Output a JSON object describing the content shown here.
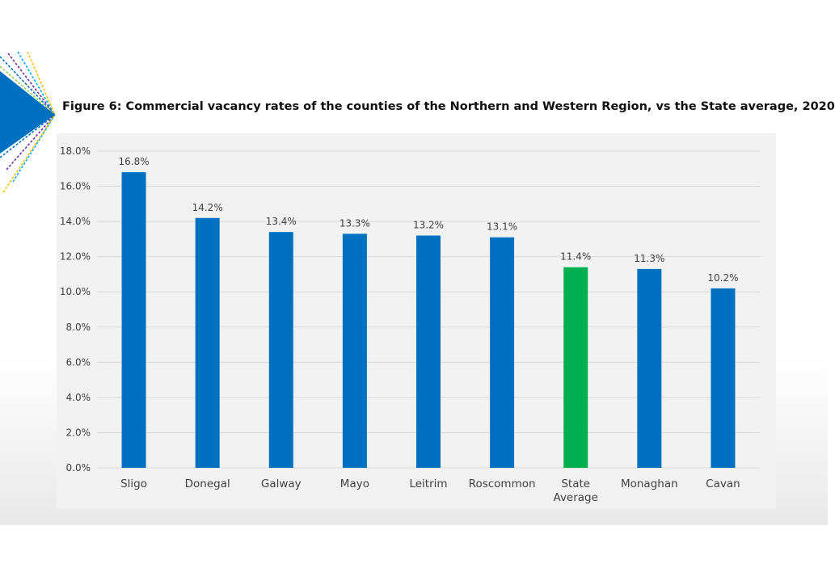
{
  "chart_data": {
    "type": "bar",
    "title": "Figure 6: Commercial vacancy rates of the counties of the Northern and Western Region, vs the State average, 2020",
    "categories": [
      "Sligo",
      "Donegal",
      "Galway",
      "Mayo",
      "Leitrim",
      "Roscommon",
      "State\nAverage",
      "Monaghan",
      "Cavan"
    ],
    "values": [
      16.8,
      14.2,
      13.4,
      13.3,
      13.2,
      13.1,
      11.4,
      11.3,
      10.2
    ],
    "data_labels": [
      "16.8%",
      "14.2%",
      "13.4%",
      "13.3%",
      "13.2%",
      "13.1%",
      "11.4%",
      "11.3%",
      "10.2%"
    ],
    "y_ticks": [
      "0.0%",
      "2.0%",
      "4.0%",
      "6.0%",
      "8.0%",
      "10.0%",
      "12.0%",
      "14.0%",
      "16.0%",
      "18.0%"
    ],
    "ylim": [
      0,
      18
    ],
    "xlabel": "",
    "ylabel": "",
    "grid": true,
    "legend": "none",
    "colors": {
      "bar": "#0070c0",
      "highlight": "#00b050",
      "highlight_category_index": 6,
      "gridline": "#d9d9d9",
      "plot_background": "#f2f2f2"
    }
  },
  "decoration": {
    "icon": "arrow-fan-logo",
    "colors": [
      "#0070c0",
      "#7030a0",
      "#00b0f0",
      "#ffc000",
      "#92d050",
      "#ff6600"
    ]
  }
}
